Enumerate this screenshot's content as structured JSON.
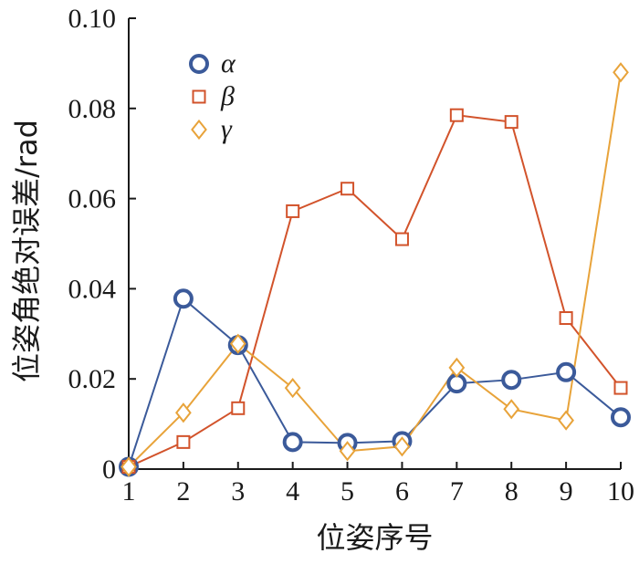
{
  "chart_data": {
    "type": "line",
    "title": "",
    "xlabel": "位姿序号",
    "ylabel": "位姿角绝对误差/rad",
    "x": [
      1,
      2,
      3,
      4,
      5,
      6,
      7,
      8,
      9,
      10
    ],
    "xlim": [
      1,
      10
    ],
    "ylim": [
      0,
      0.1
    ],
    "x_ticks": [
      "1",
      "2",
      "3",
      "4",
      "5",
      "6",
      "7",
      "8",
      "9",
      "10"
    ],
    "y_ticks": [
      {
        "value": 0,
        "label": "0"
      },
      {
        "value": 0.02,
        "label": "0.02"
      },
      {
        "value": 0.04,
        "label": "0.04"
      },
      {
        "value": 0.06,
        "label": "0.06"
      },
      {
        "value": 0.08,
        "label": "0.08"
      },
      {
        "value": 0.1,
        "label": "0.10"
      }
    ],
    "grid": false,
    "legend_position": "top-left",
    "series": [
      {
        "name": "α",
        "marker": "circle",
        "color": "#3b5a9a",
        "values": [
          0.0005,
          0.0378,
          0.0275,
          0.006,
          0.0058,
          0.0062,
          0.019,
          0.0198,
          0.0215,
          0.0115
        ]
      },
      {
        "name": "β",
        "marker": "square",
        "color": "#d2532b",
        "values": [
          0.0005,
          0.006,
          0.0135,
          0.0572,
          0.0622,
          0.051,
          0.0785,
          0.077,
          0.0335,
          0.018
        ]
      },
      {
        "name": "γ",
        "marker": "diamond",
        "color": "#e8a33a",
        "values": [
          0.0005,
          0.0125,
          0.0278,
          0.018,
          0.004,
          0.005,
          0.0225,
          0.0133,
          0.0108,
          0.088
        ]
      }
    ]
  }
}
